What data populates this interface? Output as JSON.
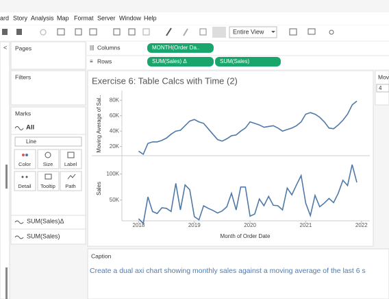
{
  "menu": [
    "ard",
    "Story",
    "Analysis",
    "Map",
    "Format",
    "Server",
    "Window",
    "Help"
  ],
  "toolbar": {
    "fit": "Entire View"
  },
  "panes": {
    "pages": "Pages",
    "filters": "Filters",
    "marks": "Marks",
    "all": "All",
    "mark_type": "Line",
    "cards": [
      "Color",
      "Size",
      "Label",
      "Detail",
      "Tooltip",
      "Path"
    ],
    "fields": [
      "SUM(Sales)Δ",
      "SUM(Sales)"
    ]
  },
  "shelves": {
    "columns": "Columns",
    "rows": "Rows",
    "column_pills": [
      "MONTH(Order Da.."
    ],
    "row_pills": [
      "SUM(Sales) Δ",
      "SUM(Sales)"
    ]
  },
  "parameter": {
    "name": "Mov",
    "value": "4"
  },
  "worksheet_title": "Exercise 6: Table Calcs with Time (2)",
  "chart_data": [
    {
      "type": "line",
      "y_label": "Moving Average of Sal..",
      "color": "#4e79a7",
      "x": [
        2018,
        2018.083,
        2018.167,
        2018.25,
        2018.333,
        2018.417,
        2018.5,
        2018.583,
        2018.667,
        2018.75,
        2018.833,
        2018.917,
        2019,
        2019.083,
        2019.167,
        2019.25,
        2019.333,
        2019.417,
        2019.5,
        2019.583,
        2019.667,
        2019.75,
        2019.833,
        2019.917,
        2020,
        2020.083,
        2020.167,
        2020.25,
        2020.333,
        2020.417,
        2020.5,
        2020.583,
        2020.667,
        2020.75,
        2020.833,
        2020.917,
        2021,
        2021.083,
        2021.167,
        2021.25,
        2021.333,
        2021.417,
        2021.5,
        2021.583,
        2021.667,
        2021.75,
        2021.833,
        2021.917
      ],
      "values": [
        14000,
        10000,
        24000,
        26000,
        26000,
        28000,
        31000,
        36000,
        40000,
        41000,
        47000,
        53000,
        55000,
        52000,
        50000,
        43000,
        36000,
        29000,
        27000,
        30000,
        34000,
        35000,
        40000,
        44000,
        52000,
        50000,
        48000,
        45000,
        46000,
        47000,
        44000,
        40000,
        42000,
        44000,
        47000,
        52000,
        62000,
        64000,
        62000,
        58000,
        52000,
        44000,
        43000,
        48000,
        54000,
        62000,
        74000,
        79000
      ],
      "xlim": [
        2017.7,
        2022.15
      ],
      "ylim": [
        9000,
        90000
      ],
      "yticks": [
        {
          "value": 20000,
          "label": "20K"
        },
        {
          "value": 40000,
          "label": "40K"
        },
        {
          "value": 60000,
          "label": "60K"
        },
        {
          "value": 80000,
          "label": "80K"
        }
      ]
    },
    {
      "type": "line",
      "y_label": "Sales",
      "x_label": "Month of Order Date",
      "color": "#4e79a7",
      "x": [
        2018,
        2018.083,
        2018.167,
        2018.25,
        2018.333,
        2018.417,
        2018.5,
        2018.583,
        2018.667,
        2018.75,
        2018.833,
        2018.917,
        2019,
        2019.083,
        2019.167,
        2019.25,
        2019.333,
        2019.417,
        2019.5,
        2019.583,
        2019.667,
        2019.75,
        2019.833,
        2019.917,
        2020,
        2020.083,
        2020.167,
        2020.25,
        2020.333,
        2020.417,
        2020.5,
        2020.583,
        2020.667,
        2020.75,
        2020.833,
        2020.917,
        2021,
        2021.083,
        2021.167,
        2021.25,
        2021.333,
        2021.417,
        2021.5,
        2021.583,
        2021.667,
        2021.75,
        2021.833,
        2021.917
      ],
      "values": [
        14000,
        5000,
        56000,
        28000,
        24000,
        35000,
        34000,
        28000,
        82000,
        31000,
        79000,
        70000,
        18000,
        12000,
        39000,
        34000,
        30000,
        25000,
        29000,
        37000,
        63000,
        31000,
        75000,
        75000,
        19000,
        23000,
        52000,
        39000,
        57000,
        40000,
        39000,
        31000,
        73000,
        60000,
        79000,
        97000,
        44000,
        20000,
        59000,
        37000,
        44000,
        53000,
        45000,
        63000,
        88000,
        78000,
        118000,
        84000
      ],
      "xlim": [
        2017.7,
        2022.15
      ],
      "ylim": [
        10000,
        134000
      ],
      "xticks": [
        2018,
        2019,
        2020,
        2021,
        2022
      ],
      "yticks": [
        {
          "value": 50000,
          "label": "50K"
        },
        {
          "value": 100000,
          "label": "100K"
        }
      ]
    }
  ],
  "caption": {
    "title": "Caption",
    "text": "Create a dual axi chart showing monthly sales against a moving average of the last 6 s"
  }
}
